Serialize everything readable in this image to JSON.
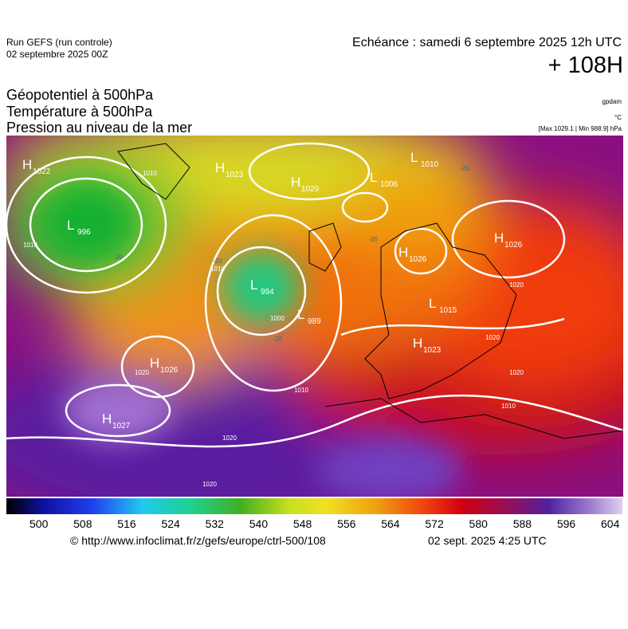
{
  "header": {
    "run": "Run GEFS (run controle)",
    "run_date": "02 septembre 2025 00Z",
    "valid": "Echéance : samedi 6 septembre 2025 12h UTC",
    "lead": "+ 108H"
  },
  "titles": [
    "Géopotentiel à 500hPa",
    "Température à 500hPa",
    "Pression au niveau de la mer"
  ],
  "units": {
    "geopotential": "gpdam",
    "temperature": "°C",
    "pressure": "[Max 1029.1 | Min 988.9] hPa"
  },
  "centers": [
    {
      "letter": "H",
      "value": "1022"
    },
    {
      "letter": "H",
      "value": "1023"
    },
    {
      "letter": "H",
      "value": "1029"
    },
    {
      "letter": "L",
      "value": "1006"
    },
    {
      "letter": "L",
      "value": "1010"
    },
    {
      "letter": "L",
      "value": "996"
    },
    {
      "letter": "L",
      "value": "994"
    },
    {
      "letter": "L",
      "value": "989"
    },
    {
      "letter": "H",
      "value": "1026"
    },
    {
      "letter": "H",
      "value": "1027"
    },
    {
      "letter": "H",
      "value": "1026"
    },
    {
      "letter": "H",
      "value": "1026"
    },
    {
      "letter": "L",
      "value": "1015"
    },
    {
      "letter": "H",
      "value": "1023"
    }
  ],
  "isobar_labels": [
    "1010",
    "1010",
    "1000",
    "1010",
    "1020",
    "1010",
    "1020",
    "1020",
    "1020",
    "1010",
    "1020",
    "1020"
  ],
  "isotherm_labels": [
    "-20",
    "-20",
    "-20",
    "-20",
    "-20"
  ],
  "colorbar": {
    "ticks": [
      500,
      508,
      516,
      524,
      532,
      540,
      548,
      556,
      564,
      572,
      580,
      588,
      596,
      604
    ]
  },
  "footer": {
    "source": "© http://www.infoclimat.fr/z/gefs/europe/ctrl-500/108",
    "issued": "02 sept. 2025  4:25 UTC"
  }
}
